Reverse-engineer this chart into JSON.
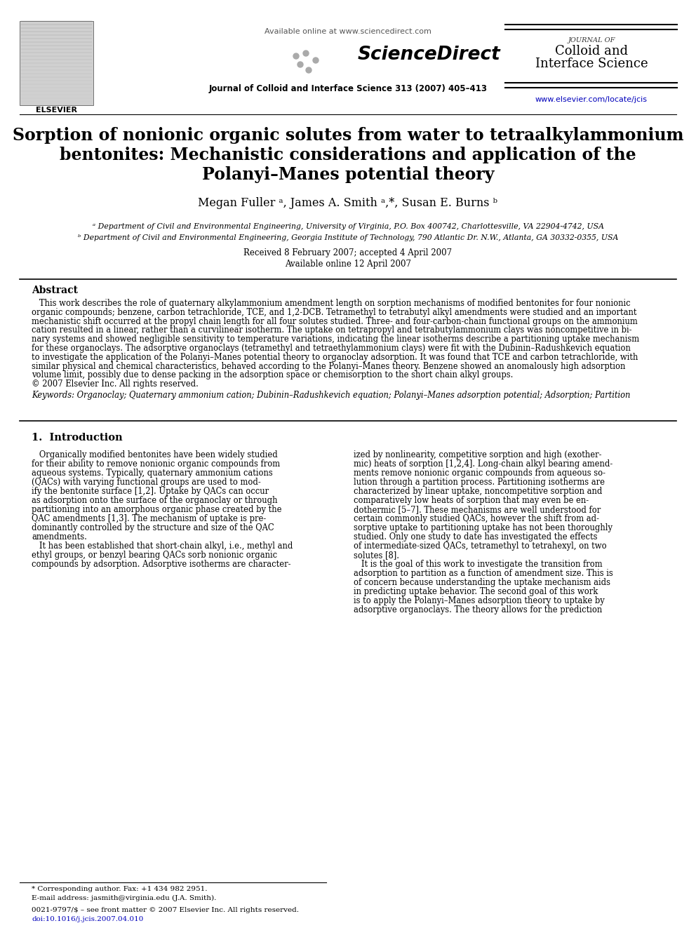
{
  "bg_color": "#ffffff",
  "header_available_online": "Available online at www.sciencedirect.com",
  "journal_name_top": "Journal of Colloid and Interface Science 313 (2007) 405–413",
  "journal_box_line1": "JOURNAL OF",
  "journal_box_line2": "Colloid and",
  "journal_box_line3": "Interface Science",
  "journal_url": "www.elsevier.com/locate/jcis",
  "paper_title_line1": "Sorption of nonionic organic solutes from water to tetraalkylammonium",
  "paper_title_line2": "bentonites: Mechanistic considerations and application of the",
  "paper_title_line3": "Polanyi–Manes potential theory",
  "authors": "Megan Fuller ᵃ, James A. Smith ᵃ,*, Susan E. Burns ᵇ",
  "affil_a": "ᵃ Department of Civil and Environmental Engineering, University of Virginia, P.O. Box 400742, Charlottesville, VA 22904-4742, USA",
  "affil_b": "ᵇ Department of Civil and Environmental Engineering, Georgia Institute of Technology, 790 Atlantic Dr. N.W., Atlanta, GA 30332-0355, USA",
  "received": "Received 8 February 2007; accepted 4 April 2007",
  "available_online": "Available online 12 April 2007",
  "abstract_title": "Abstract",
  "abstract_lines": [
    "   This work describes the role of quaternary alkylammonium amendment length on sorption mechanisms of modified bentonites for four nonionic",
    "organic compounds; benzene, carbon tetrachloride, TCE, and 1,2-DCB. Tetramethyl to tetrabutyl alkyl amendments were studied and an important",
    "mechanistic shift occurred at the propyl chain length for all four solutes studied. Three- and four-carbon-chain functional groups on the ammonium",
    "cation resulted in a linear, rather than a curvilinear isotherm. The uptake on tetrapropyl and tetrabutylammonium clays was noncompetitive in bi-",
    "nary systems and showed negligible sensitivity to temperature variations, indicating the linear isotherms describe a partitioning uptake mechanism",
    "for these organoclays. The adsorptive organoclays (tetramethyl and tetraethylammonium clays) were fit with the Dubinin–Radushkevich equation",
    "to investigate the application of the Polanyi–Manes potential theory to organoclay adsorption. It was found that TCE and carbon tetrachloride, with",
    "similar physical and chemical characteristics, behaved according to the Polanyi–Manes theory. Benzene showed an anomalously high adsorption",
    "volume limit, possibly due to dense packing in the adsorption space or chemisorption to the short chain alkyl groups.",
    "© 2007 Elsevier Inc. All rights reserved."
  ],
  "keywords": "Keywords: Organoclay; Quaternary ammonium cation; Dubinin–Radushkevich equation; Polanyi–Manes adsorption potential; Adsorption; Partition",
  "section1_title": "1.  Introduction",
  "intro_left_lines": [
    "   Organically modified bentonites have been widely studied",
    "for their ability to remove nonionic organic compounds from",
    "aqueous systems. Typically, quaternary ammonium cations",
    "(QACs) with varying functional groups are used to mod-",
    "ify the bentonite surface [1,2]. Uptake by QACs can occur",
    "as adsorption onto the surface of the organoclay or through",
    "partitioning into an amorphous organic phase created by the",
    "QAC amendments [1,3]. The mechanism of uptake is pre-",
    "dominantly controlled by the structure and size of the QAC",
    "amendments.",
    "   It has been established that short-chain alkyl, i.e., methyl and",
    "ethyl groups, or benzyl bearing QACs sorb nonionic organic",
    "compounds by adsorption. Adsorptive isotherms are character-"
  ],
  "intro_right_lines": [
    "ized by nonlinearity, competitive sorption and high (exother-",
    "mic) heats of sorption [1,2,4]. Long-chain alkyl bearing amend-",
    "ments remove nonionic organic compounds from aqueous so-",
    "lution through a partition process. Partitioning isotherms are",
    "characterized by linear uptake, noncompetitive sorption and",
    "comparatively low heats of sorption that may even be en-",
    "dothermic [5–7]. These mechanisms are well understood for",
    "certain commonly studied QACs, however the shift from ad-",
    "sorptive uptake to partitioning uptake has not been thoroughly",
    "studied. Only one study to date has investigated the effects",
    "of intermediate-sized QACs, tetramethyl to tetrahexyl, on two",
    "solutes [8].",
    "   It is the goal of this work to investigate the transition from",
    "adsorption to partition as a function of amendment size. This is",
    "of concern because understanding the uptake mechanism aids",
    "in predicting uptake behavior. The second goal of this work",
    "is to apply the Polanyi–Manes adsorption theory to uptake by",
    "adsorptive organoclays. The theory allows for the prediction"
  ],
  "footer_text1": "* Corresponding author. Fax: +1 434 982 2951.",
  "footer_text2": "E-mail address: jasmith@virginia.edu (J.A. Smith).",
  "footer_text3": "0021-9797/$ – see front matter © 2007 Elsevier Inc. All rights reserved.",
  "footer_text4": "doi:10.1016/j.jcis.2007.04.010",
  "sciencedirect_dots": [
    [
      -52,
      -10
    ],
    [
      -40,
      -18
    ],
    [
      -58,
      2
    ],
    [
      -44,
      6
    ],
    [
      -30,
      -4
    ]
  ]
}
